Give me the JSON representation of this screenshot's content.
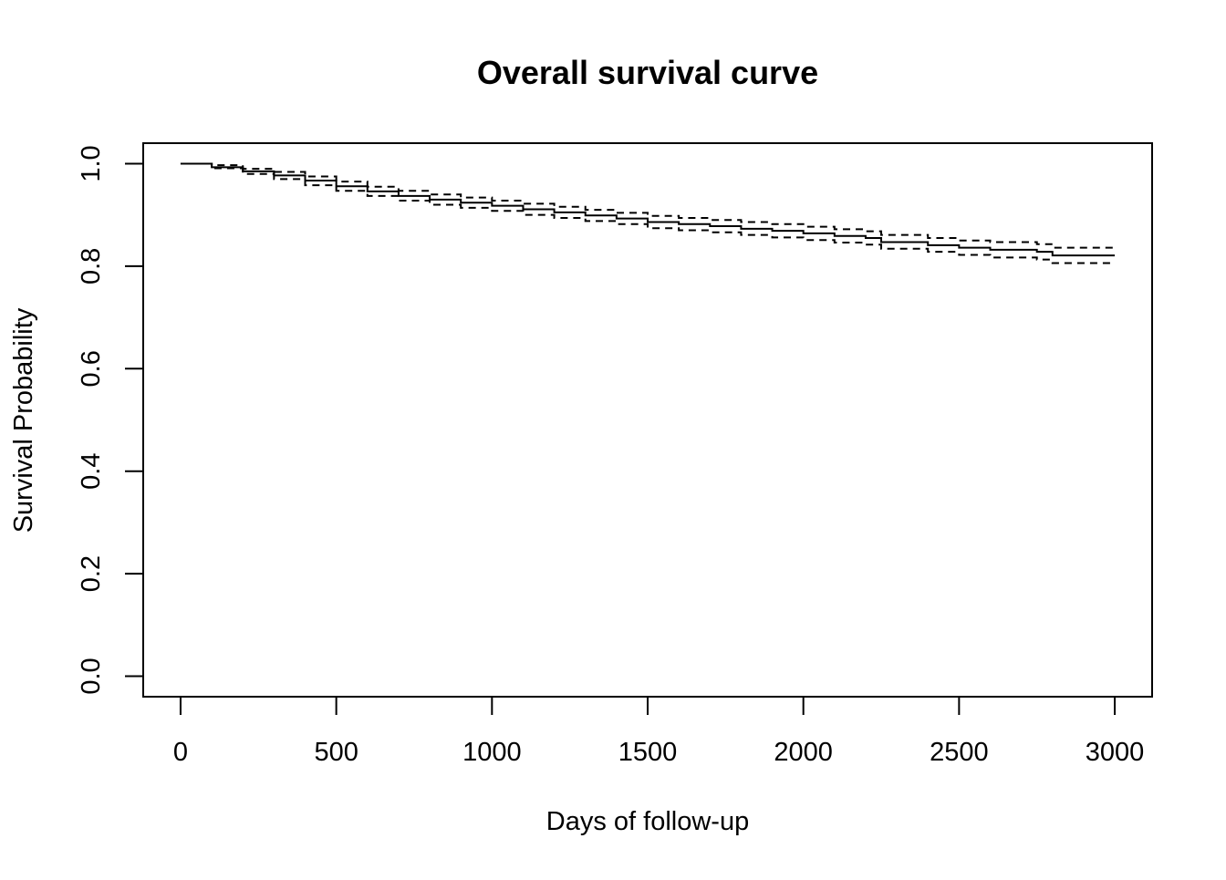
{
  "chart_data": {
    "type": "line",
    "title": "Overall survival curve",
    "xlabel": "Days of follow-up",
    "ylabel": "Survival Probability",
    "xlim": [
      -120,
      3120
    ],
    "ylim": [
      -0.04,
      1.04
    ],
    "x_ticks": [
      0,
      500,
      1000,
      1500,
      2000,
      2500,
      3000
    ],
    "x_tick_labels": [
      "0",
      "500",
      "1000",
      "1500",
      "2000",
      "2500",
      "3000"
    ],
    "y_ticks": [
      0.0,
      0.2,
      0.4,
      0.6,
      0.8,
      1.0
    ],
    "y_tick_labels": [
      "0.0",
      "0.2",
      "0.4",
      "0.6",
      "0.8",
      "1.0"
    ],
    "grid": false,
    "legend": "none",
    "series": [
      {
        "style": "solid",
        "x": [
          0,
          100,
          200,
          300,
          400,
          500,
          600,
          700,
          800,
          900,
          1000,
          1100,
          1200,
          1300,
          1400,
          1500,
          1600,
          1700,
          1800,
          1900,
          2000,
          2100,
          2200,
          2250,
          2400,
          2500,
          2600,
          2750,
          2800,
          3000
        ],
        "y": [
          1.0,
          0.993,
          0.985,
          0.977,
          0.967,
          0.956,
          0.946,
          0.937,
          0.93,
          0.924,
          0.918,
          0.911,
          0.905,
          0.899,
          0.893,
          0.886,
          0.882,
          0.878,
          0.873,
          0.869,
          0.864,
          0.859,
          0.855,
          0.847,
          0.841,
          0.836,
          0.832,
          0.828,
          0.821,
          0.821
        ]
      },
      {
        "style": "dashed",
        "x": [
          0,
          100,
          200,
          300,
          400,
          500,
          600,
          700,
          800,
          900,
          1000,
          1100,
          1200,
          1300,
          1400,
          1500,
          1600,
          1700,
          1800,
          1900,
          2000,
          2100,
          2200,
          2250,
          2400,
          2500,
          2600,
          2750,
          2800,
          3000
        ],
        "y": [
          1.0,
          0.997,
          0.99,
          0.984,
          0.975,
          0.965,
          0.955,
          0.947,
          0.94,
          0.934,
          0.928,
          0.922,
          0.916,
          0.91,
          0.904,
          0.898,
          0.894,
          0.89,
          0.886,
          0.882,
          0.877,
          0.872,
          0.868,
          0.861,
          0.855,
          0.85,
          0.847,
          0.843,
          0.836,
          0.836
        ]
      },
      {
        "style": "dashed",
        "x": [
          0,
          100,
          200,
          300,
          400,
          500,
          600,
          700,
          800,
          900,
          1000,
          1100,
          1200,
          1300,
          1400,
          1500,
          1600,
          1700,
          1800,
          1900,
          2000,
          2100,
          2200,
          2250,
          2400,
          2500,
          2600,
          2750,
          2800,
          3000
        ],
        "y": [
          1.0,
          0.991,
          0.98,
          0.97,
          0.958,
          0.947,
          0.937,
          0.928,
          0.92,
          0.914,
          0.908,
          0.9,
          0.894,
          0.888,
          0.882,
          0.874,
          0.87,
          0.866,
          0.861,
          0.856,
          0.851,
          0.846,
          0.842,
          0.834,
          0.828,
          0.822,
          0.817,
          0.813,
          0.806,
          0.806
        ]
      }
    ]
  }
}
